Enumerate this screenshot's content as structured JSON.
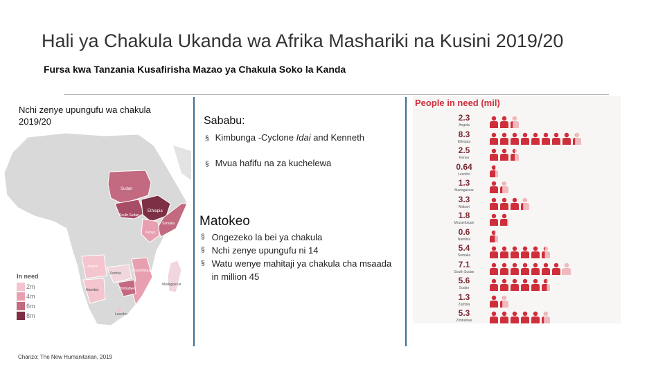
{
  "header": {
    "title": "Hali ya Chakula Ukanda wa Afrika Mashariki na Kusini 2019/20",
    "subtitle": "Fursa kwa Tanzania Kusafirisha Mazao ya Chakula Soko la Kanda"
  },
  "map_panel": {
    "heading": "Nchi zenye upungufu wa chakula 2019/20",
    "source": "Chanzo: The New Humanitarian, 2019",
    "country_labels": {
      "sudan": "Sudan",
      "south_sudan": "South Sudan",
      "ethiopia": "Ethiopia",
      "somalia": "Somalia",
      "kenya": "Kenya",
      "angola": "Angola",
      "zambia": "Zambia",
      "zimbabwe": "Zimbabwe",
      "mozambique": "Mozambique",
      "madagascar": "Madagascar",
      "namibia": "Namibia",
      "lesotho": "Lesotho"
    },
    "legend": {
      "title": "In need",
      "items": [
        {
          "label": "2m",
          "color": "#f4c4cf"
        },
        {
          "label": "4m",
          "color": "#e8a0b1"
        },
        {
          "label": "6m",
          "color": "#c36a80"
        },
        {
          "label": "8m",
          "color": "#7c2f45"
        }
      ]
    }
  },
  "causes": {
    "heading": "Sababu:",
    "items": [
      {
        "text": "Kimbunga -Cyclone ",
        "italic": "Idai",
        "rest": " and Kenneth"
      },
      {
        "text": "Mvua hafifu na za kuchelewa",
        "italic": "",
        "rest": ""
      }
    ]
  },
  "effects": {
    "heading": "Matokeo",
    "items": [
      "Ongezeko la bei ya chakula",
      "Nchi zenye upungufu ni 14",
      "Watu wenye mahitaji ya chakula cha msaada in million  45"
    ]
  },
  "people_panel": {
    "title": "People in need (mil)",
    "rows": [
      {
        "value": "2.3",
        "name": "Angola"
      },
      {
        "value": "8.3",
        "name": "Ethiopia"
      },
      {
        "value": "2.5",
        "name": "Kenya"
      },
      {
        "value": "0.64",
        "name": "Lesotho"
      },
      {
        "value": "1.3",
        "name": "Madagascar"
      },
      {
        "value": "3.3",
        "name": "Malawi"
      },
      {
        "value": "1.8",
        "name": "Mozambique"
      },
      {
        "value": "0.6",
        "name": "Namibia"
      },
      {
        "value": "5.4",
        "name": "Somalia"
      },
      {
        "value": "7.1",
        "name": "South Sudan"
      },
      {
        "value": "5.6",
        "name": "Sudan"
      },
      {
        "value": "1.3",
        "name": "Zambia"
      },
      {
        "value": "5.3",
        "name": "Zimbabwe"
      }
    ],
    "colors": {
      "filled": "#cf2e3b",
      "empty": "#f0b9bd"
    }
  }
}
